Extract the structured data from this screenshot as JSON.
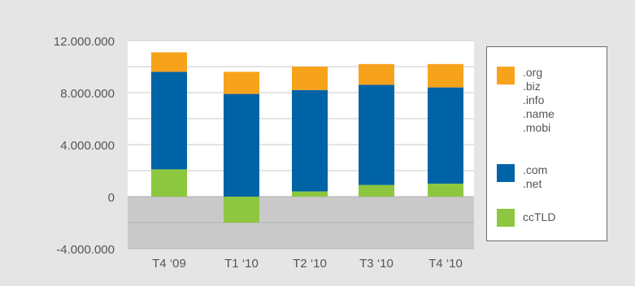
{
  "chart_data": {
    "type": "bar",
    "stacked": true,
    "categories": [
      "T4 ‘09",
      "T1 ‘10",
      "T2 ‘10",
      "T3 ‘10",
      "T4 ‘10"
    ],
    "series": [
      {
        "key": "cctld",
        "color": "#8dc63f",
        "values": [
          2100000,
          -2000000,
          400000,
          900000,
          1000000
        ]
      },
      {
        "key": "com_net",
        "color": "#0063a6",
        "values": [
          7500000,
          7900000,
          7800000,
          7700000,
          7400000
        ]
      },
      {
        "key": "org_group",
        "color": "#f7a21b",
        "values": [
          1500000,
          1700000,
          1800000,
          1600000,
          1800000
        ]
      }
    ],
    "y_ticks": [
      "12.000.000",
      "8.000.000",
      "4.000.000",
      "0",
      "-4.000.000"
    ],
    "y_tick_values": [
      12000000,
      8000000,
      4000000,
      0,
      -4000000
    ],
    "ylim": [
      -4000000,
      12000000
    ],
    "grid": true,
    "legend_position": "right",
    "legend": [
      {
        "color": "#f7a21b",
        "labels": [
          ".org",
          ".biz",
          ".info",
          ".name",
          ".mobi"
        ]
      },
      {
        "color": "#0063a6",
        "labels": [
          ".com",
          ".net"
        ]
      },
      {
        "color": "#8dc63f",
        "labels": [
          "ccTLD"
        ]
      }
    ],
    "colors": {
      "background": "#e5e5e5",
      "plot_positive": "#ffffff",
      "plot_negative": "#c9c9c9",
      "grid": "#c9c9c9",
      "text": "#555555"
    }
  }
}
